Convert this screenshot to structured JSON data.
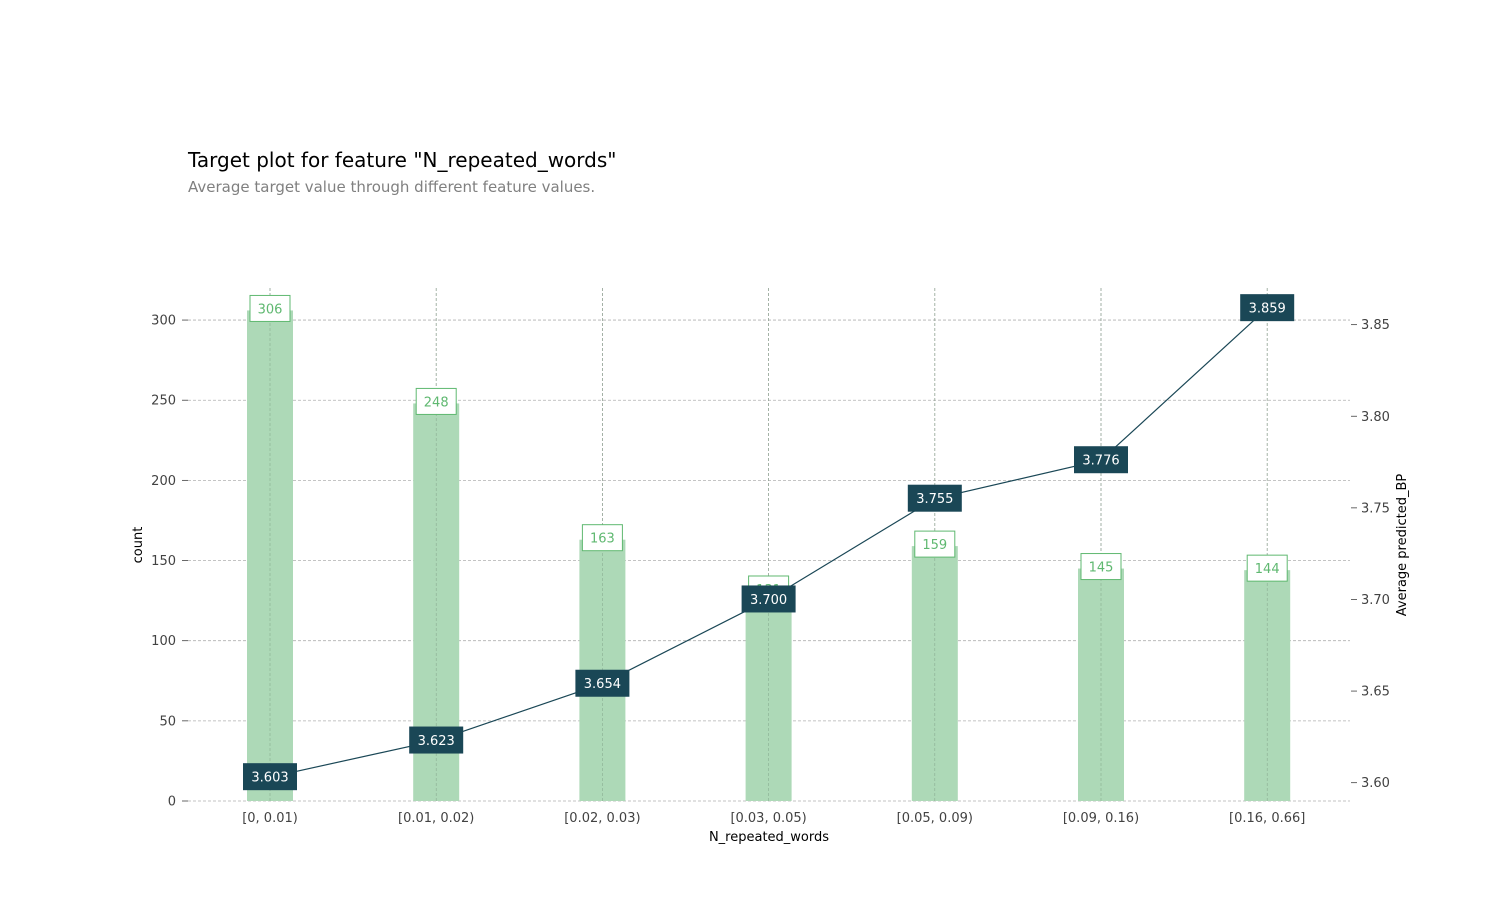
{
  "chart_data": {
    "type": "bar",
    "title": "Target plot for feature \"N_repeated_words\"",
    "subtitle": "Average target value through different feature values.",
    "xlabel": "N_repeated_words",
    "ylabel": "count",
    "y2label": "Average predicted_BP",
    "categories": [
      "[0, 0.01)",
      "[0.01, 0.02)",
      "[0.02, 0.03)",
      "[0.03, 0.05)",
      "[0.05, 0.09)",
      "[0.09, 0.16)",
      "[0.16, 0.66]"
    ],
    "series": [
      {
        "name": "count",
        "type": "bar",
        "axis": "left",
        "values": [
          306,
          248,
          163,
          131,
          159,
          145,
          144
        ]
      },
      {
        "name": "Average predicted_BP",
        "type": "line",
        "axis": "right",
        "values": [
          3.603,
          3.623,
          3.654,
          3.7,
          3.755,
          3.776,
          3.859
        ]
      }
    ],
    "ylim": [
      0,
      320
    ],
    "yticks": [
      0,
      50,
      100,
      150,
      200,
      250,
      300
    ],
    "y2lim": [
      3.59,
      3.87
    ],
    "y2ticks": [
      3.6,
      3.65,
      3.7,
      3.75,
      3.8,
      3.85
    ],
    "y2tick_labels": [
      "3.60",
      "3.65",
      "3.70",
      "3.75",
      "3.80",
      "3.85"
    ],
    "value_labels": [
      "3.603",
      "3.623",
      "3.654",
      "3.700",
      "3.755",
      "3.776",
      "3.859"
    ],
    "grid": true,
    "colors": {
      "bar": "#add9b7",
      "bar_label": "#5fb870",
      "line": "#1a4756",
      "grid": "#b0b0b0",
      "tick_text": "#424242"
    }
  }
}
